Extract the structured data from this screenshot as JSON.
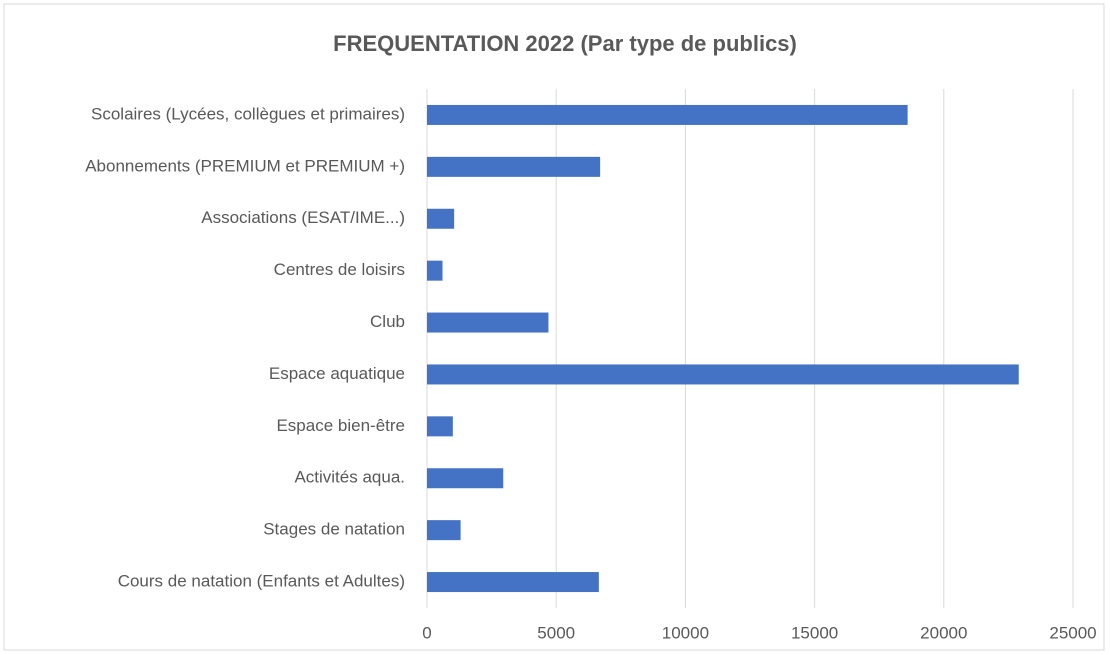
{
  "chart_data": {
    "type": "bar",
    "orientation": "horizontal",
    "title": "FREQUENTATION 2022 (Par type de publics)",
    "categories": [
      "Scolaires (Lycées, collègues et primaires)",
      "Abonnements (PREMIUM et PREMIUM +)",
      "Associations (ESAT/IME...)",
      "Centres de loisirs",
      "Club",
      "Espace aquatique",
      "Espace bien-être",
      "Activités aqua.",
      "Stages de natation",
      "Cours de natation (Enfants et Adultes)"
    ],
    "values": [
      18600,
      6700,
      1050,
      600,
      4700,
      22900,
      1000,
      2950,
      1300,
      6650
    ],
    "color": "#4472c4",
    "xlim": [
      0,
      25000
    ],
    "xticks": [
      0,
      5000,
      10000,
      15000,
      20000,
      25000
    ],
    "grid": true
  }
}
